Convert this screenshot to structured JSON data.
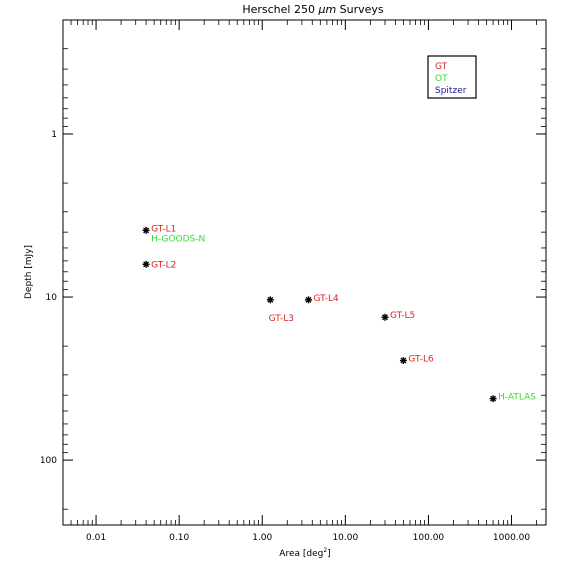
{
  "chart_data": {
    "type": "scatter",
    "title_prefix": "Herschel 250 ",
    "title_unit": "μm",
    "title_suffix": " Surveys",
    "xlabel_prefix": "Area [deg",
    "xlabel_sup": "2",
    "xlabel_suffix": "]",
    "ylabel": "Depth [mJy]",
    "x_scale": "log",
    "y_scale": "log",
    "y_inverted": true,
    "xlim": [
      0.004,
      2600
    ],
    "ylim": [
      0.2,
      250
    ],
    "x_ticks": [
      {
        "value": 0.01,
        "label": "0.01"
      },
      {
        "value": 0.1,
        "label": "0.10"
      },
      {
        "value": 1,
        "label": "1.00"
      },
      {
        "value": 10,
        "label": "10.00"
      },
      {
        "value": 100,
        "label": "100.00"
      },
      {
        "value": 1000,
        "label": "1000.00"
      }
    ],
    "y_ticks": [
      {
        "value": 1,
        "label": "1"
      },
      {
        "value": 10,
        "label": "10"
      },
      {
        "value": 100,
        "label": "100"
      }
    ],
    "legend": {
      "placement": "top-right",
      "entries": [
        {
          "label": "GT",
          "color": "#dd2222"
        },
        {
          "label": "OT",
          "color": "#33dd33"
        },
        {
          "label": "Spitzer",
          "color": "#1a1aa0"
        }
      ]
    },
    "colors": {
      "GT": "#dd2222",
      "OT": "#33dd33",
      "Spitzer": "#1a1aa0",
      "marker": "#000000"
    },
    "points": [
      {
        "x": 0.04,
        "y": 3.9,
        "labels": [
          {
            "text": "GT-L1",
            "group": "GT",
            "pos": "right-up"
          },
          {
            "text": "H-GOODS-N",
            "group": "OT",
            "pos": "right-down"
          }
        ]
      },
      {
        "x": 0.04,
        "y": 6.3,
        "labels": [
          {
            "text": "GT-L2",
            "group": "GT",
            "pos": "right"
          }
        ]
      },
      {
        "x": 1.25,
        "y": 10.4,
        "labels": [
          {
            "text": "GT-L3",
            "group": "GT",
            "pos": "below"
          }
        ]
      },
      {
        "x": 3.6,
        "y": 10.4,
        "labels": [
          {
            "text": "GT-L4",
            "group": "GT",
            "pos": "right-up"
          }
        ]
      },
      {
        "x": 30,
        "y": 13.3,
        "labels": [
          {
            "text": "GT-L5",
            "group": "GT",
            "pos": "right-up"
          }
        ]
      },
      {
        "x": 50,
        "y": 24.5,
        "labels": [
          {
            "text": "GT-L6",
            "group": "GT",
            "pos": "right-up"
          }
        ]
      },
      {
        "x": 600,
        "y": 42,
        "labels": [
          {
            "text": "H-ATLAS",
            "group": "OT",
            "pos": "right-up"
          }
        ]
      }
    ]
  }
}
